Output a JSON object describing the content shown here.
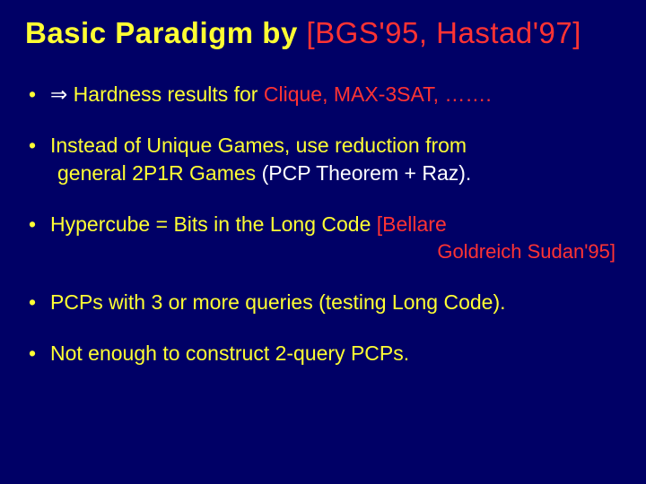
{
  "colors": {
    "background": "#000066",
    "yellow": "#ffff33",
    "red": "#ff3333",
    "white": "#ffffff"
  },
  "title": {
    "main": "Basic Paradigm by ",
    "cite": "[BGS'95, Hastad'97]"
  },
  "bullets": [
    {
      "arrow": "⇒",
      "pre": "   Hardness results  for ",
      "highlight": "Clique,  MAX-3SAT,  …….",
      "arrow_white": true
    },
    {
      "line1_a": "Instead  of Unique Games,  use reduction from",
      "line2_a": "general  2P1R  Games ",
      "line2_b": "(PCP Theorem + Raz)."
    },
    {
      "line1_a": "Hypercube  =  Bits  in  the  Long Code ",
      "cite1": "[Bellare",
      "cite2": "Goldreich Sudan'95]"
    },
    {
      "line1_a": "PCPs  with  3  or  more  queries  (testing  Long  Code)."
    },
    {
      "line1_a": "Not  enough  to  construct  2-query  PCPs."
    }
  ]
}
